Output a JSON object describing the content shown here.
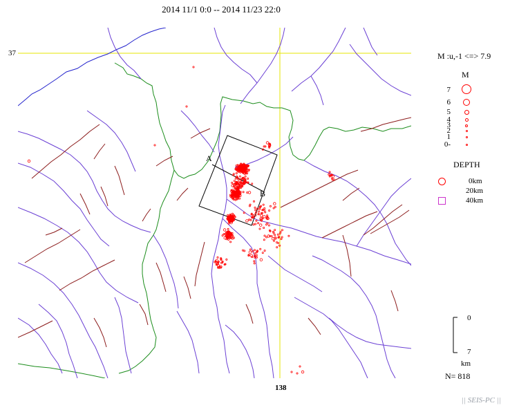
{
  "title": "2014 11/1 0:0 -- 2014 11/23 22:0",
  "axes": {
    "lat_label": "37",
    "lon_label": "138"
  },
  "section": {
    "start_label": "A",
    "end_label": "B"
  },
  "legend": {
    "magnitude_range": "M :u,-1 <=> 7.9",
    "magnitude_title": "M",
    "magnitudes": [
      {
        "label": "7",
        "value": 7
      },
      {
        "label": "6",
        "value": 6
      },
      {
        "label": "5",
        "value": 5
      },
      {
        "label": "4",
        "value": 4
      },
      {
        "label": "3",
        "value": 3
      },
      {
        "label": "2",
        "value": 2
      },
      {
        "label": "1",
        "value": 1
      },
      {
        "label": "0-",
        "value": 0
      }
    ],
    "depth_title": "DEPTH",
    "depths": [
      {
        "label": "0km",
        "color": "#ff0000",
        "shape": "circle"
      },
      {
        "label": "20km",
        "color": "#ff0000",
        "shape": "circle"
      },
      {
        "label": "40km",
        "color": "#cc33cc",
        "shape": "square"
      }
    ]
  },
  "scale": {
    "top": "0",
    "bottom": "7",
    "unit": "km"
  },
  "count": "N= 818",
  "footer": "|| SEIS-PC ||",
  "colors": {
    "epicenter": "#ff0000",
    "river": "#6a3fd4",
    "fault": "#8b1a1a",
    "prefecture_border": "#1a8c1a",
    "coastline": "#2222cc",
    "grid": "#e6e600"
  }
}
